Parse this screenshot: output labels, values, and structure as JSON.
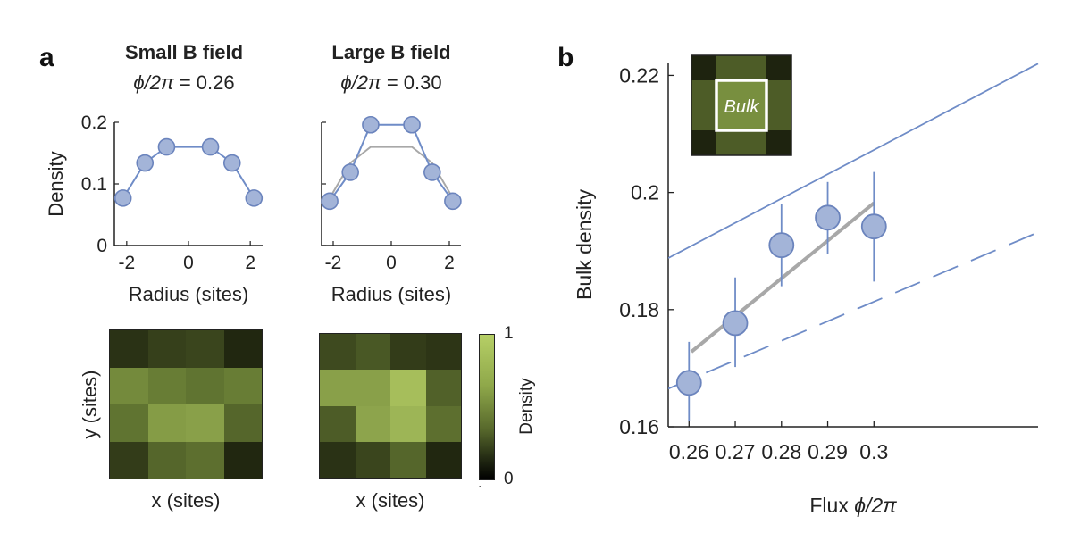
{
  "panel_a": {
    "letter": "a",
    "left": {
      "title": "Small B field",
      "phi_symbol": "ϕ/2π",
      "phi_value": "= 0.26",
      "xlabel": "Radius (sites)",
      "ylabel": "Density",
      "heatmap_xlabel": "x (sites)",
      "heatmap_ylabel": "y (sites)"
    },
    "right": {
      "title": "Large B field",
      "phi_symbol": "ϕ/2π",
      "phi_value": "= 0.30",
      "xlabel": "Radius (sites)",
      "heatmap_xlabel": "x (sites)"
    },
    "colorbar": {
      "label": "Density",
      "max_label": "1",
      "min_label": "0",
      "dot_label": "."
    }
  },
  "panel_b": {
    "letter": "b",
    "inset_label": "Bulk"
  },
  "chart_data": [
    {
      "type": "line",
      "name": "small-field-profile",
      "x": [
        -2.12,
        -1.41,
        -0.71,
        0.71,
        1.41,
        2.12
      ],
      "y": [
        0.077,
        0.134,
        0.16,
        0.16,
        0.134,
        0.077
      ],
      "xlabel": "Radius (sites)",
      "ylabel": "Density",
      "xlim": [
        -2.4,
        2.4
      ],
      "ylim": [
        0,
        0.2
      ],
      "xticks": [
        -2,
        0,
        2
      ],
      "yticks": [
        0,
        0.1,
        0.2
      ],
      "xtick_labels": [
        "-2",
        "0",
        "2"
      ],
      "ytick_labels": [
        "0",
        "0.1",
        "0.2"
      ]
    },
    {
      "type": "line",
      "name": "large-field-profile",
      "x": [
        -2.12,
        -1.41,
        -0.71,
        0.71,
        1.41,
        2.12
      ],
      "series": [
        {
          "name": "measured",
          "values": [
            0.072,
            0.119,
            0.196,
            0.196,
            0.119,
            0.072
          ]
        },
        {
          "name": "reference",
          "values": [
            0.077,
            0.134,
            0.16,
            0.16,
            0.134,
            0.077
          ]
        }
      ],
      "xlabel": "Radius (sites)",
      "xlim": [
        -2.4,
        2.4
      ],
      "ylim": [
        0,
        0.2
      ],
      "xticks": [
        -2,
        0,
        2
      ],
      "xtick_labels": [
        "-2",
        "0",
        "2"
      ]
    },
    {
      "type": "heatmap",
      "name": "small-field-density-map",
      "rows": [
        [
          0.28,
          0.36,
          0.38,
          0.22
        ],
        [
          0.68,
          0.62,
          0.58,
          0.62
        ],
        [
          0.58,
          0.76,
          0.78,
          0.52
        ],
        [
          0.34,
          0.52,
          0.56,
          0.22
        ]
      ],
      "range": [
        0,
        1
      ],
      "xlabel": "x (sites)",
      "ylabel": "y (sites)"
    },
    {
      "type": "heatmap",
      "name": "large-field-density-map",
      "rows": [
        [
          0.4,
          0.46,
          0.34,
          0.3
        ],
        [
          0.78,
          0.78,
          0.92,
          0.5
        ],
        [
          0.48,
          0.8,
          0.88,
          0.56
        ],
        [
          0.28,
          0.38,
          0.52,
          0.22
        ]
      ],
      "range": [
        0,
        1
      ],
      "xlabel": "x (sites)"
    },
    {
      "type": "scatter",
      "name": "bulk-density-vs-flux",
      "xlabel": "Flux ϕ/2π",
      "ylabel": "Bulk density",
      "xlim": [
        0.2555,
        0.3355
      ],
      "ylim": [
        0.16,
        0.2222
      ],
      "xticks": [
        0.26,
        0.27,
        0.28,
        0.29,
        0.3
      ],
      "xtick_labels": [
        "0.26",
        "0.27",
        "0.28",
        "0.29",
        "0.3"
      ],
      "yticks": [
        0.16,
        0.18,
        0.2,
        0.22
      ],
      "ytick_labels": [
        "0.16",
        "0.18",
        "0.2",
        "0.22"
      ],
      "points": [
        {
          "x": 0.26,
          "y": 0.1675,
          "err_low": 0.161,
          "err_high": 0.1745
        },
        {
          "x": 0.27,
          "y": 0.1777,
          "err_low": 0.1702,
          "err_high": 0.1855
        },
        {
          "x": 0.28,
          "y": 0.191,
          "err_low": 0.184,
          "err_high": 0.198
        },
        {
          "x": 0.29,
          "y": 0.1957,
          "err_low": 0.1895,
          "err_high": 0.2018
        },
        {
          "x": 0.3,
          "y": 0.1942,
          "err_low": 0.1848,
          "err_high": 0.2035
        }
      ],
      "lines": [
        {
          "name": "upper-solid-blue",
          "style": "solid",
          "x": [
            0.2555,
            0.3355
          ],
          "y": [
            0.1888,
            0.222
          ]
        },
        {
          "name": "dashed-blue",
          "style": "dashed",
          "x": [
            0.2555,
            0.3355
          ],
          "y": [
            0.1665,
            0.1932
          ]
        },
        {
          "name": "gray-fit",
          "style": "solid",
          "x": [
            0.2605,
            0.3
          ],
          "y": [
            0.1728,
            0.1982
          ]
        }
      ],
      "inset_rows": [
        [
          0.2,
          0.48,
          0.48,
          0.2
        ],
        [
          0.48,
          0.7,
          0.7,
          0.48
        ],
        [
          0.48,
          0.7,
          0.7,
          0.48
        ],
        [
          0.2,
          0.48,
          0.48,
          0.2
        ]
      ]
    }
  ],
  "colors": {
    "marker_fill": "#a3b4d8",
    "marker_edge": "#6b84bd",
    "line_blue": "#6f8cc7",
    "gray": "#a8a8a8",
    "axis": "#222222"
  }
}
